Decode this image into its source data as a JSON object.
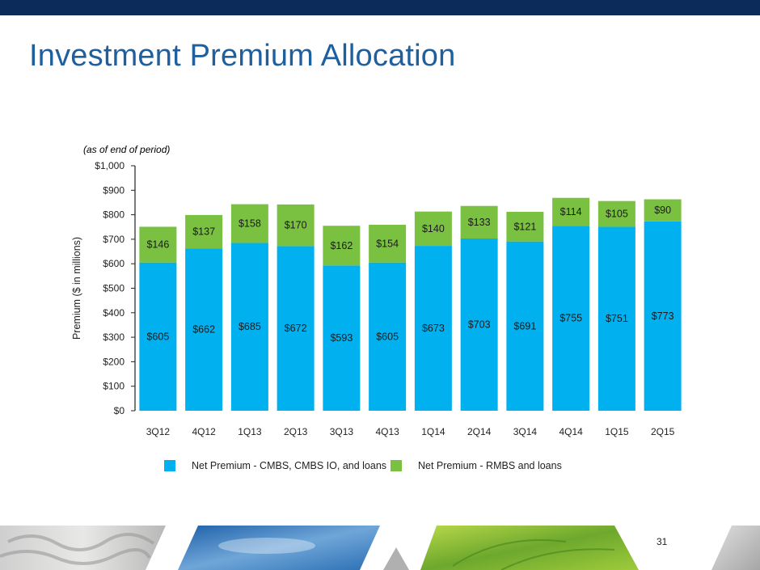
{
  "slide": {
    "title": "Investment Premium Allocation",
    "subtitle": "(as of end of period)",
    "page_number": "31"
  },
  "colors": {
    "top_bar": "#0c2b5b",
    "title": "#1f5f9e",
    "cmbs": "#00b0ef",
    "rmbs": "#7ac142"
  },
  "chart_data": {
    "type": "bar",
    "stacked": true,
    "categories": [
      "3Q12",
      "4Q12",
      "1Q13",
      "2Q13",
      "3Q13",
      "4Q13",
      "1Q14",
      "2Q14",
      "3Q14",
      "4Q14",
      "1Q15",
      "2Q15"
    ],
    "series": [
      {
        "name": "Net Premium - CMBS, CMBS IO, and loans",
        "color": "#00b0ef",
        "values": [
          605,
          662,
          685,
          672,
          593,
          605,
          673,
          703,
          691,
          755,
          751,
          773
        ],
        "labels": [
          "$605",
          "$662",
          "$685",
          "$672",
          "$593",
          "$605",
          "$673",
          "$703",
          "$691",
          "$755",
          "$751",
          "$773"
        ]
      },
      {
        "name": "Net Premium - RMBS and loans",
        "color": "#7ac142",
        "values": [
          146,
          137,
          158,
          170,
          162,
          154,
          140,
          133,
          121,
          114,
          105,
          90
        ],
        "labels": [
          "$146",
          "$137",
          "$158",
          "$170",
          "$162",
          "$154",
          "$140",
          "$133",
          "$121",
          "$114",
          "$105",
          "$90"
        ]
      }
    ],
    "ylabel": "Premium ($ in millions)",
    "ylim": [
      0,
      1000
    ],
    "yticks": [
      0,
      100,
      200,
      300,
      400,
      500,
      600,
      700,
      800,
      900,
      1000
    ],
    "ytick_labels": [
      "$0",
      "$100",
      "$200",
      "$300",
      "$400",
      "$500",
      "$600",
      "$700",
      "$800",
      "$900",
      "$1,000"
    ],
    "grid": false,
    "legend_position": "bottom"
  }
}
